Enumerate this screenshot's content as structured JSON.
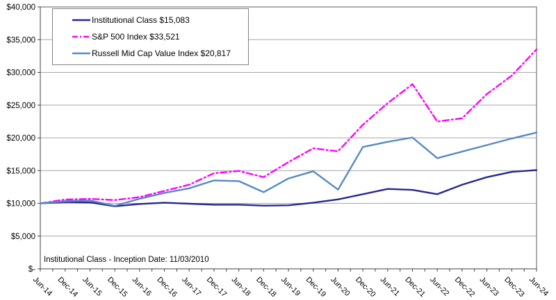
{
  "footnote": "Institutional Class - Inception Date: 11/03/2010",
  "colors": {
    "institutional_line": "#26268F",
    "sp500_line": "#FF00FF",
    "russell_line": "#5589C4",
    "gridline": "#A6A6A6",
    "plot_border": "#595959",
    "axis_tick": "#404040",
    "text": "#000000",
    "background": "#FFFFFF"
  },
  "chart_data": {
    "type": "line",
    "title": "",
    "xlabel": "",
    "ylabel": "",
    "ylim": [
      0,
      40000
    ],
    "y_step": 5000,
    "grid": "horizontal",
    "legend_position": "top-left",
    "y_tick_labels": [
      "$-",
      "$5,000",
      "$10,000",
      "$15,000",
      "$20,000",
      "$25,000",
      "$30,000",
      "$35,000",
      "$40,000"
    ],
    "categories": [
      "Jun-14",
      "Dec-14",
      "Jun-15",
      "Dec-15",
      "Jun-16",
      "Dec-16",
      "Jun-17",
      "Dec-17",
      "Jun-18",
      "Dec-18",
      "Jun-19",
      "Dec-19",
      "Jun-20",
      "Dec-20",
      "Jun-21",
      "Dec-21",
      "Jun-22",
      "Dec-22",
      "Jun-23",
      "Dec-23",
      "Jun-24"
    ],
    "series": [
      {
        "name": "Institutional Class",
        "legend_label": "Institutional Class $15,083",
        "final_value": 15083,
        "color": "#26268F",
        "style": "solid",
        "values": [
          10000,
          10200,
          10150,
          9560,
          9900,
          10100,
          9950,
          9800,
          9800,
          9650,
          9700,
          10100,
          10600,
          11400,
          12200,
          12050,
          11400,
          12850,
          14000,
          14800,
          15083
        ]
      },
      {
        "name": "S&P 500 Index",
        "legend_label": "S&P 500 Index $33,521",
        "final_value": 33521,
        "color": "#FF00FF",
        "style": "dash-dot",
        "values": [
          10000,
          10580,
          10690,
          10500,
          10950,
          11900,
          12850,
          14600,
          14950,
          14000,
          16300,
          18400,
          17950,
          22000,
          25300,
          28200,
          22500,
          23000,
          26700,
          29500,
          33521
        ]
      },
      {
        "name": "Russell Mid Cap Value Index",
        "legend_label": "Russell Mid Cap Value Index $20,817",
        "final_value": 20817,
        "color": "#5589C4",
        "style": "solid",
        "values": [
          10000,
          10340,
          10440,
          9630,
          10700,
          11600,
          12300,
          13500,
          13400,
          11700,
          13800,
          14900,
          12100,
          18600,
          19400,
          20050,
          16900,
          17900,
          18900,
          19900,
          20817
        ]
      }
    ]
  }
}
